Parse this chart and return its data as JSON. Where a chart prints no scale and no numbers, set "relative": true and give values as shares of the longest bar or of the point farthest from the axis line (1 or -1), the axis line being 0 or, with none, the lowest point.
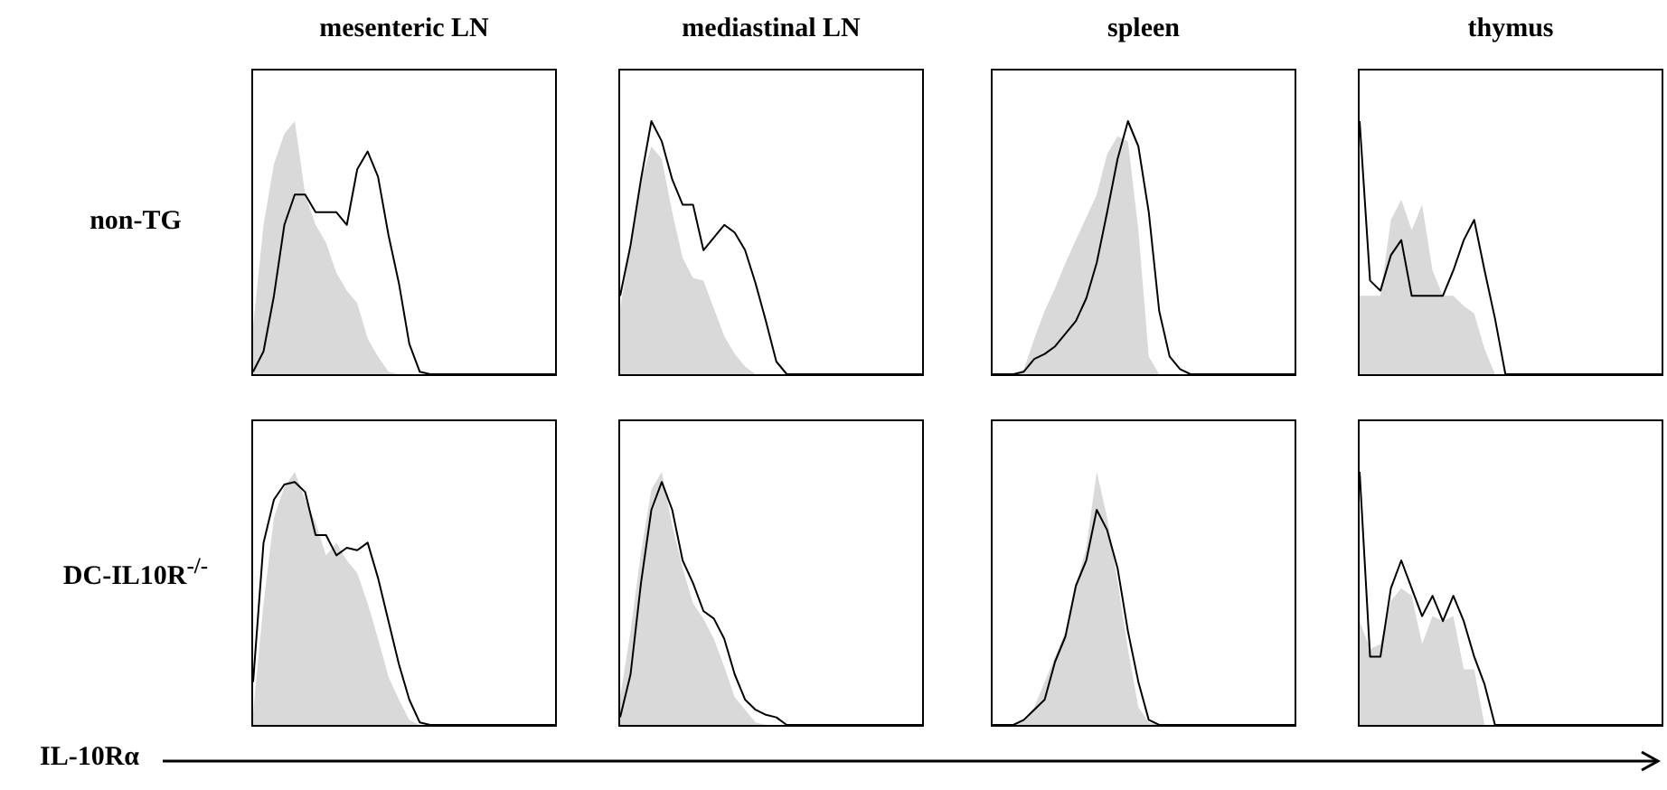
{
  "chart_data": [
    {
      "type": "area",
      "relative": true,
      "title": "mesenteric LN",
      "ylabel": "non-TG",
      "categories": [
        null,
        null,
        null,
        null,
        null,
        null,
        null,
        null,
        null,
        null,
        null,
        null,
        null,
        null,
        null,
        null,
        null,
        null,
        null,
        null,
        null,
        null,
        null,
        null,
        null,
        null,
        null,
        null,
        null,
        null
      ],
      "series": [
        {
          "type": "area",
          "color": "#d9d9d9",
          "values": [
            0.19,
            0.59,
            0.83,
            0.95,
            1,
            0.71,
            0.59,
            0.52,
            0.4,
            0.33,
            0.28,
            0.14,
            0.07,
            0.01,
            0,
            0,
            0,
            0,
            0,
            0,
            0,
            0,
            0,
            0,
            0,
            0,
            0,
            0,
            0,
            0
          ]
        },
        {
          "type": "line",
          "color": "#000000",
          "values": [
            0.01,
            0.09,
            0.31,
            0.59,
            0.71,
            0.71,
            0.64,
            0.64,
            0.64,
            0.59,
            0.81,
            0.88,
            0.78,
            0.55,
            0.36,
            0.12,
            0.01,
            0,
            0,
            0,
            0,
            0,
            0,
            0,
            0,
            0,
            0,
            0,
            0,
            0
          ]
        }
      ]
    },
    {
      "type": "area",
      "relative": true,
      "title": "mediastinal LN",
      "categories": [
        null,
        null,
        null,
        null,
        null,
        null,
        null,
        null,
        null,
        null,
        null,
        null,
        null,
        null,
        null,
        null,
        null,
        null,
        null,
        null,
        null,
        null,
        null,
        null,
        null,
        null,
        null,
        null,
        null,
        null
      ],
      "series": [
        {
          "type": "area",
          "color": "#d9d9d9",
          "values": [
            0.26,
            0.51,
            0.77,
            0.9,
            0.85,
            0.64,
            0.46,
            0.38,
            0.37,
            0.26,
            0.15,
            0.08,
            0.03,
            0,
            0,
            0,
            0,
            0,
            0,
            0,
            0,
            0,
            0,
            0,
            0,
            0,
            0,
            0,
            0,
            0
          ]
        },
        {
          "type": "line",
          "color": "#000000",
          "values": [
            0.31,
            0.51,
            0.77,
            1,
            0.92,
            0.77,
            0.67,
            0.67,
            0.49,
            0.54,
            0.59,
            0.56,
            0.49,
            0.36,
            0.21,
            0.05,
            0,
            0,
            0,
            0,
            0,
            0,
            0,
            0,
            0,
            0,
            0,
            0,
            0,
            0
          ]
        }
      ]
    },
    {
      "type": "area",
      "relative": true,
      "title": "spleen",
      "categories": [
        null,
        null,
        null,
        null,
        null,
        null,
        null,
        null,
        null,
        null,
        null,
        null,
        null,
        null,
        null,
        null,
        null,
        null,
        null,
        null,
        null,
        null,
        null,
        null,
        null,
        null,
        null,
        null,
        null,
        null
      ],
      "series": [
        {
          "type": "area",
          "color": "#d9d9d9",
          "values": [
            0,
            0,
            0,
            0.02,
            0.14,
            0.25,
            0.34,
            0.44,
            0.53,
            0.62,
            0.71,
            0.87,
            0.94,
            0.92,
            0.57,
            0.07,
            0,
            0,
            0,
            0,
            0,
            0,
            0,
            0,
            0,
            0,
            0,
            0,
            0,
            0
          ]
        },
        {
          "type": "line",
          "color": "#000000",
          "values": [
            0,
            0,
            0,
            0.01,
            0.06,
            0.08,
            0.11,
            0.16,
            0.21,
            0.3,
            0.44,
            0.64,
            0.85,
            1,
            0.9,
            0.64,
            0.25,
            0.07,
            0.02,
            0,
            0,
            0,
            0,
            0,
            0,
            0,
            0,
            0,
            0,
            0
          ]
        }
      ]
    },
    {
      "type": "area",
      "relative": true,
      "title": "thymus",
      "categories": [
        null,
        null,
        null,
        null,
        null,
        null,
        null,
        null,
        null,
        null,
        null,
        null,
        null,
        null,
        null,
        null,
        null,
        null,
        null,
        null,
        null,
        null,
        null,
        null,
        null,
        null,
        null,
        null,
        null,
        null
      ],
      "series": [
        {
          "type": "area",
          "color": "#d9d9d9",
          "values": [
            0.31,
            0.31,
            0.31,
            0.61,
            0.69,
            0.57,
            0.67,
            0.41,
            0.31,
            0.31,
            0.27,
            0.24,
            0.1,
            0,
            0,
            0,
            0,
            0,
            0,
            0,
            0,
            0,
            0,
            0,
            0,
            0,
            0,
            0,
            0,
            0
          ]
        },
        {
          "type": "line",
          "color": "#000000",
          "values": [
            1,
            0.37,
            0.33,
            0.47,
            0.53,
            0.31,
            0.31,
            0.31,
            0.31,
            0.41,
            0.53,
            0.61,
            0.41,
            0.22,
            0,
            0,
            0,
            0,
            0,
            0,
            0,
            0,
            0,
            0,
            0,
            0,
            0,
            0,
            0,
            0
          ]
        }
      ]
    },
    {
      "type": "area",
      "relative": true,
      "ylabel": "DC-IL10R$^{-/-}$",
      "xlabel": "IL-10Rα",
      "categories": [
        null,
        null,
        null,
        null,
        null,
        null,
        null,
        null,
        null,
        null,
        null,
        null,
        null,
        null,
        null,
        null,
        null,
        null,
        null,
        null,
        null,
        null,
        null,
        null,
        null,
        null,
        null,
        null,
        null,
        null
      ],
      "series": [
        {
          "type": "area",
          "color": "#d9d9d9",
          "values": [
            0.05,
            0.48,
            0.82,
            0.94,
            1,
            0.89,
            0.8,
            0.67,
            0.72,
            0.65,
            0.6,
            0.48,
            0.34,
            0.19,
            0.1,
            0.02,
            0,
            0,
            0,
            0,
            0,
            0,
            0,
            0,
            0,
            0,
            0,
            0,
            0,
            0
          ]
        },
        {
          "type": "line",
          "color": "#000000",
          "values": [
            0.17,
            0.72,
            0.89,
            0.95,
            0.96,
            0.92,
            0.75,
            0.75,
            0.67,
            0.7,
            0.69,
            0.72,
            0.58,
            0.41,
            0.24,
            0.1,
            0.01,
            0,
            0,
            0,
            0,
            0,
            0,
            0,
            0,
            0,
            0,
            0,
            0,
            0
          ]
        }
      ]
    },
    {
      "type": "area",
      "relative": true,
      "categories": [
        null,
        null,
        null,
        null,
        null,
        null,
        null,
        null,
        null,
        null,
        null,
        null,
        null,
        null,
        null,
        null,
        null,
        null,
        null,
        null,
        null,
        null,
        null,
        null,
        null,
        null,
        null,
        null,
        null,
        null
      ],
      "series": [
        {
          "type": "area",
          "color": "#d9d9d9",
          "values": [
            0.11,
            0.37,
            0.68,
            0.93,
            1,
            0.79,
            0.62,
            0.48,
            0.42,
            0.34,
            0.23,
            0.11,
            0.06,
            0.01,
            0,
            0,
            0,
            0,
            0,
            0,
            0,
            0,
            0,
            0,
            0,
            0,
            0,
            0,
            0,
            0
          ]
        },
        {
          "type": "line",
          "color": "#000000",
          "values": [
            0.03,
            0.2,
            0.56,
            0.85,
            0.96,
            0.85,
            0.65,
            0.56,
            0.45,
            0.42,
            0.34,
            0.2,
            0.1,
            0.06,
            0.04,
            0.03,
            0,
            0,
            0,
            0,
            0,
            0,
            0,
            0,
            0,
            0,
            0,
            0,
            0,
            0
          ]
        }
      ]
    },
    {
      "type": "area",
      "relative": true,
      "categories": [
        null,
        null,
        null,
        null,
        null,
        null,
        null,
        null,
        null,
        null,
        null,
        null,
        null,
        null,
        null,
        null,
        null,
        null,
        null,
        null,
        null,
        null,
        null,
        null,
        null,
        null,
        null,
        null,
        null,
        null
      ],
      "series": [
        {
          "type": "area",
          "color": "#d9d9d9",
          "values": [
            0,
            0,
            0,
            0.02,
            0.07,
            0.17,
            0.27,
            0.37,
            0.55,
            0.7,
            1,
            0.82,
            0.57,
            0.3,
            0.07,
            0.01,
            0,
            0,
            0,
            0,
            0,
            0,
            0,
            0,
            0,
            0,
            0,
            0,
            0,
            0
          ]
        },
        {
          "type": "line",
          "color": "#000000",
          "values": [
            0,
            0,
            0,
            0.02,
            0.06,
            0.1,
            0.25,
            0.35,
            0.55,
            0.65,
            0.85,
            0.77,
            0.62,
            0.37,
            0.17,
            0.02,
            0,
            0,
            0,
            0,
            0,
            0,
            0,
            0,
            0,
            0,
            0,
            0,
            0,
            0
          ]
        }
      ]
    },
    {
      "type": "area",
      "relative": true,
      "categories": [
        null,
        null,
        null,
        null,
        null,
        null,
        null,
        null,
        null,
        null,
        null,
        null,
        null,
        null,
        null,
        null,
        null,
        null,
        null,
        null,
        null,
        null,
        null,
        null,
        null,
        null,
        null,
        null,
        null,
        null
      ],
      "series": [
        {
          "type": "area",
          "color": "#d9d9d9",
          "values": [
            0.41,
            0.3,
            0.32,
            0.49,
            0.54,
            0.51,
            0.32,
            0.43,
            0.41,
            0.43,
            0.22,
            0.22,
            0,
            0,
            0,
            0,
            0,
            0,
            0,
            0,
            0,
            0,
            0,
            0,
            0,
            0,
            0,
            0,
            0,
            0
          ]
        },
        {
          "type": "line",
          "color": "#000000",
          "values": [
            1,
            0.27,
            0.27,
            0.54,
            0.65,
            0.54,
            0.43,
            0.51,
            0.41,
            0.51,
            0.41,
            0.27,
            0.16,
            0,
            0,
            0,
            0,
            0,
            0,
            0,
            0,
            0,
            0,
            0,
            0,
            0,
            0,
            0,
            0,
            0
          ]
        }
      ]
    }
  ]
}
